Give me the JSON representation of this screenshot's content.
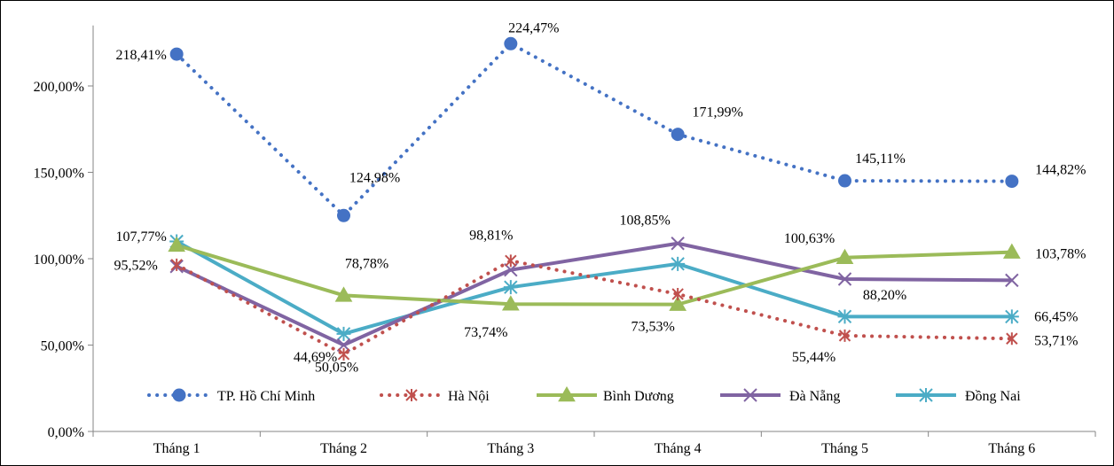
{
  "chart_data": {
    "type": "line",
    "title": "",
    "xlabel": "",
    "ylabel": "",
    "categories": [
      "Tháng 1",
      "Tháng 2",
      "Tháng 3",
      "Tháng 4",
      "Tháng 5",
      "Tháng 6"
    ],
    "y_ticks": [
      "0,00%",
      "50,00%",
      "100,00%",
      "150,00%",
      "200,00%"
    ],
    "ylim": [
      0,
      235
    ],
    "grid": false,
    "legend_position": "bottom-inside",
    "series": [
      {
        "name": "TP. Hồ Chí Minh",
        "color": "#4472C4",
        "style": "dotted",
        "marker": "circle",
        "values": [
          218.41,
          124.98,
          224.47,
          171.99,
          145.11,
          144.82
        ],
        "labels": [
          "218,41%",
          "124,98%",
          "224,47%",
          "171,99%",
          "145,11%",
          "144,82%"
        ]
      },
      {
        "name": "Hà Nội",
        "color": "#C0504D",
        "style": "dotted",
        "marker": "star",
        "values": [
          96.5,
          44.69,
          98.81,
          79.5,
          55.44,
          53.71
        ],
        "labels": [
          "",
          "44,69%",
          "98,81%",
          "",
          "55,44%",
          "53,71%"
        ]
      },
      {
        "name": "Bình Dương",
        "color": "#9BBB59",
        "style": "solid",
        "marker": "triangle",
        "values": [
          107.77,
          78.78,
          73.74,
          73.53,
          100.63,
          103.78
        ],
        "labels": [
          "107,77%",
          "78,78%",
          "73,74%",
          "73,53%",
          "100,63%",
          "103,78%"
        ]
      },
      {
        "name": "Đà Nẵng",
        "color": "#8064A2",
        "style": "solid",
        "marker": "x",
        "values": [
          95.52,
          50.05,
          93.5,
          108.85,
          88.2,
          87.5
        ],
        "labels": [
          "95,52%",
          "50,05%",
          "",
          "108,85%",
          "88,20%",
          ""
        ]
      },
      {
        "name": "Đồng Nai",
        "color": "#4BACC6",
        "style": "solid",
        "marker": "asterisk",
        "values": [
          110.0,
          56.5,
          83.5,
          97.0,
          66.5,
          66.45
        ],
        "labels": [
          "",
          "",
          "",
          "",
          "",
          "66,45%"
        ]
      }
    ]
  }
}
